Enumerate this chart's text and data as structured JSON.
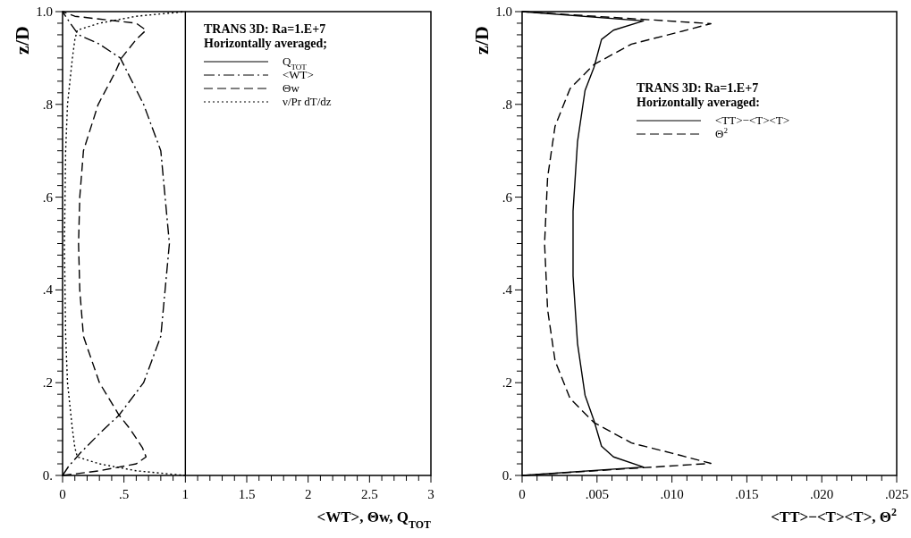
{
  "chart_data": [
    {
      "type": "line",
      "orientation": "horizontal",
      "xlabel": "<WT>, Θw, Q$_{TOT}$",
      "ylabel": "z/D",
      "legend_title": "TRANS 3D: Ra=1.E+7",
      "annotations": [
        "Horizontally averaged;"
      ],
      "legend": "top right",
      "grid": false,
      "xlim": [
        0,
        3
      ],
      "ylim": [
        0,
        1
      ],
      "xticks": [
        0,
        {
          "value": 0.1,
          "label": null
        },
        {
          "value": 0.2,
          "label": null
        },
        {
          "value": 0.3,
          "label": null
        },
        {
          "value": 0.4,
          "label": null
        },
        {
          "value": 0.5,
          "label": ".5"
        },
        {
          "value": 0.6,
          "label": null
        },
        {
          "value": 0.7,
          "label": null
        },
        {
          "value": 0.8,
          "label": null
        },
        {
          "value": 0.9,
          "label": null
        },
        1,
        {
          "value": 1.1,
          "label": null
        },
        {
          "value": 1.2,
          "label": null
        },
        {
          "value": 1.3,
          "label": null
        },
        {
          "value": 1.4,
          "label": null
        },
        1.5,
        {
          "value": 1.6,
          "label": null
        },
        {
          "value": 1.7,
          "label": null
        },
        {
          "value": 1.8,
          "label": null
        },
        {
          "value": 1.9,
          "label": null
        },
        2,
        {
          "value": 2.1,
          "label": null
        },
        {
          "value": 2.2,
          "label": null
        },
        {
          "value": 2.3,
          "label": null
        },
        {
          "value": 2.4,
          "label": null
        },
        2.5,
        {
          "value": 2.6,
          "label": null
        },
        {
          "value": 2.7,
          "label": null
        },
        {
          "value": 2.8,
          "label": null
        },
        {
          "value": 2.9,
          "label": null
        },
        3
      ],
      "yticks": [
        {
          "value": 0,
          "label": "0."
        },
        {
          "value": 0.025,
          "label": null
        },
        {
          "value": 0.05,
          "label": null
        },
        {
          "value": 0.075,
          "label": null
        },
        {
          "value": 0.1,
          "label": null
        },
        {
          "value": 0.125,
          "label": null
        },
        {
          "value": 0.15,
          "label": null
        },
        {
          "value": 0.175,
          "label": null
        },
        {
          "value": 0.2,
          "label": ".2"
        },
        {
          "value": 0.225,
          "label": null
        },
        {
          "value": 0.25,
          "label": null
        },
        {
          "value": 0.275,
          "label": null
        },
        {
          "value": 0.3,
          "label": null
        },
        {
          "value": 0.325,
          "label": null
        },
        {
          "value": 0.35,
          "label": null
        },
        {
          "value": 0.375,
          "label": null
        },
        {
          "value": 0.4,
          "label": ".4"
        },
        {
          "value": 0.425,
          "label": null
        },
        {
          "value": 0.45,
          "label": null
        },
        {
          "value": 0.475,
          "label": null
        },
        {
          "value": 0.5,
          "label": null
        },
        {
          "value": 0.525,
          "label": null
        },
        {
          "value": 0.55,
          "label": null
        },
        {
          "value": 0.575,
          "label": null
        },
        {
          "value": 0.6,
          "label": ".6"
        },
        {
          "value": 0.625,
          "label": null
        },
        {
          "value": 0.65,
          "label": null
        },
        {
          "value": 0.675,
          "label": null
        },
        {
          "value": 0.7,
          "label": null
        },
        {
          "value": 0.725,
          "label": null
        },
        {
          "value": 0.75,
          "label": null
        },
        {
          "value": 0.775,
          "label": null
        },
        {
          "value": 0.8,
          "label": ".8"
        },
        {
          "value": 0.825,
          "label": null
        },
        {
          "value": 0.85,
          "label": null
        },
        {
          "value": 0.875,
          "label": null
        },
        {
          "value": 0.9,
          "label": null
        },
        {
          "value": 0.925,
          "label": null
        },
        {
          "value": 0.95,
          "label": null
        },
        {
          "value": 0.975,
          "label": null
        },
        {
          "value": 1,
          "label": "1.0"
        }
      ],
      "series": [
        {
          "name": "Q$_{TOT}$",
          "color": "#000000",
          "line_style": "solid",
          "x": [
            0,
            1
          ],
          "values": [
            1,
            1
          ]
        },
        {
          "name": "<WT>",
          "color": "#000000",
          "line_style": "dashdot",
          "x": [
            0,
            0.02,
            0.05,
            0.09,
            0.13,
            0.2,
            0.3,
            0.5,
            0.7,
            0.8,
            0.9,
            0.93,
            0.95,
            0.98,
            1
          ],
          "values": [
            0,
            0.05,
            0.15,
            0.3,
            0.46,
            0.66,
            0.8,
            0.87,
            0.8,
            0.66,
            0.47,
            0.3,
            0.13,
            0.05,
            0
          ]
        },
        {
          "name": "Θw",
          "color": "#000000",
          "line_style": "dashed",
          "x": [
            0,
            0.01,
            0.025,
            0.04,
            0.06,
            0.1,
            0.13,
            0.2,
            0.3,
            0.4,
            0.5,
            0.6,
            0.7,
            0.8,
            0.87,
            0.9,
            0.94,
            0.96,
            0.975,
            0.99,
            1
          ],
          "values": [
            0,
            0.3,
            0.6,
            0.68,
            0.65,
            0.55,
            0.46,
            0.3,
            0.17,
            0.14,
            0.13,
            0.14,
            0.17,
            0.29,
            0.43,
            0.48,
            0.6,
            0.68,
            0.6,
            0.1,
            0
          ]
        },
        {
          "name": "ν/Pr dT/dz",
          "color": "#000000",
          "line_style": "dotted",
          "x": [
            0,
            0.01,
            0.025,
            0.04,
            0.06,
            0.1,
            0.2,
            0.3,
            0.5,
            0.7,
            0.8,
            0.9,
            0.94,
            0.96,
            0.975,
            0.99,
            1
          ],
          "values": [
            1,
            0.6,
            0.3,
            0.12,
            0.1,
            0.08,
            0.04,
            0.025,
            0.015,
            0.025,
            0.04,
            0.08,
            0.1,
            0.12,
            0.3,
            0.6,
            1
          ]
        }
      ]
    },
    {
      "type": "line",
      "orientation": "horizontal",
      "xlabel": "<TT>−<T><T>, Θ$^{2}$",
      "ylabel": "z/D",
      "legend_title": "TRANS 3D: Ra=1.E+7",
      "annotations": [
        "Horizontally averaged:"
      ],
      "legend": "top right",
      "grid": false,
      "xlim": [
        0,
        0.025
      ],
      "ylim": [
        0,
        1
      ],
      "xticks": [
        0,
        {
          "value": 0.001,
          "label": null
        },
        {
          "value": 0.002,
          "label": null
        },
        {
          "value": 0.003,
          "label": null
        },
        {
          "value": 0.004,
          "label": null
        },
        {
          "value": 0.005,
          "label": ".005"
        },
        {
          "value": 0.006,
          "label": null
        },
        {
          "value": 0.007,
          "label": null
        },
        {
          "value": 0.008,
          "label": null
        },
        {
          "value": 0.009,
          "label": null
        },
        {
          "value": 0.01,
          "label": ".010"
        },
        {
          "value": 0.011,
          "label": null
        },
        {
          "value": 0.012,
          "label": null
        },
        {
          "value": 0.013,
          "label": null
        },
        {
          "value": 0.014,
          "label": null
        },
        {
          "value": 0.015,
          "label": ".015"
        },
        {
          "value": 0.016,
          "label": null
        },
        {
          "value": 0.017,
          "label": null
        },
        {
          "value": 0.018,
          "label": null
        },
        {
          "value": 0.019,
          "label": null
        },
        {
          "value": 0.02,
          "label": ".020"
        },
        {
          "value": 0.021,
          "label": null
        },
        {
          "value": 0.022,
          "label": null
        },
        {
          "value": 0.023,
          "label": null
        },
        {
          "value": 0.024,
          "label": null
        },
        {
          "value": 0.025,
          "label": ".025"
        }
      ],
      "yticks": [
        {
          "value": 0,
          "label": "0."
        },
        {
          "value": 0.025,
          "label": null
        },
        {
          "value": 0.05,
          "label": null
        },
        {
          "value": 0.075,
          "label": null
        },
        {
          "value": 0.1,
          "label": null
        },
        {
          "value": 0.125,
          "label": null
        },
        {
          "value": 0.15,
          "label": null
        },
        {
          "value": 0.175,
          "label": null
        },
        {
          "value": 0.2,
          "label": ".2"
        },
        {
          "value": 0.225,
          "label": null
        },
        {
          "value": 0.25,
          "label": null
        },
        {
          "value": 0.275,
          "label": null
        },
        {
          "value": 0.3,
          "label": null
        },
        {
          "value": 0.325,
          "label": null
        },
        {
          "value": 0.35,
          "label": null
        },
        {
          "value": 0.375,
          "label": null
        },
        {
          "value": 0.4,
          "label": ".4"
        },
        {
          "value": 0.425,
          "label": null
        },
        {
          "value": 0.45,
          "label": null
        },
        {
          "value": 0.475,
          "label": null
        },
        {
          "value": 0.5,
          "label": null
        },
        {
          "value": 0.525,
          "label": null
        },
        {
          "value": 0.55,
          "label": null
        },
        {
          "value": 0.575,
          "label": null
        },
        {
          "value": 0.6,
          "label": ".6"
        },
        {
          "value": 0.625,
          "label": null
        },
        {
          "value": 0.65,
          "label": null
        },
        {
          "value": 0.675,
          "label": null
        },
        {
          "value": 0.7,
          "label": null
        },
        {
          "value": 0.725,
          "label": null
        },
        {
          "value": 0.75,
          "label": null
        },
        {
          "value": 0.775,
          "label": null
        },
        {
          "value": 0.8,
          "label": ".8"
        },
        {
          "value": 0.825,
          "label": null
        },
        {
          "value": 0.85,
          "label": null
        },
        {
          "value": 0.875,
          "label": null
        },
        {
          "value": 0.9,
          "label": null
        },
        {
          "value": 0.925,
          "label": null
        },
        {
          "value": 0.95,
          "label": null
        },
        {
          "value": 0.975,
          "label": null
        },
        {
          "value": 1,
          "label": "1.0"
        }
      ],
      "series": [
        {
          "name": "<TT>−<T><T>",
          "color": "#000000",
          "line_style": "solid",
          "x": [
            0,
            0.018,
            0.04,
            0.063,
            0.118,
            0.173,
            0.284,
            0.43,
            0.5,
            0.57,
            0.72,
            0.83,
            0.88,
            0.94,
            0.96,
            0.98,
            1
          ],
          "values": [
            0,
            0.0081,
            0.0061,
            0.0053,
            0.0048,
            0.0042,
            0.0037,
            0.0034,
            0.0034,
            0.0034,
            0.0037,
            0.0042,
            0.0048,
            0.0053,
            0.0061,
            0.0081,
            0
          ]
        },
        {
          "name": "Θ$^{2}$",
          "color": "#000000",
          "line_style": "dashed",
          "x": [
            0,
            0.026,
            0.048,
            0.07,
            0.114,
            0.166,
            0.247,
            0.358,
            0.5,
            0.642,
            0.753,
            0.834,
            0.886,
            0.93,
            0.952,
            0.974,
            1
          ],
          "values": [
            0,
            0.0126,
            0.01,
            0.0073,
            0.0048,
            0.0032,
            0.0022,
            0.0017,
            0.0015,
            0.0017,
            0.0022,
            0.0032,
            0.0048,
            0.0073,
            0.01,
            0.0126,
            0
          ]
        }
      ]
    }
  ]
}
